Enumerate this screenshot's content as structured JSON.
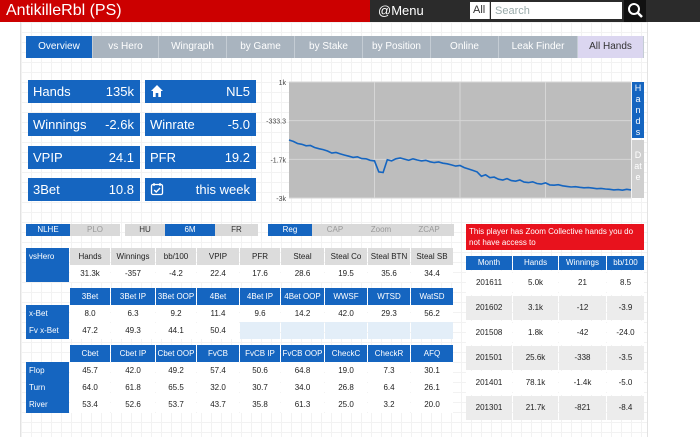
{
  "header": {
    "title": "AntikilleRbl (PS)",
    "menu_label": "@Menu",
    "scope_label": "All",
    "search_placeholder": "Search"
  },
  "tabs": [
    {
      "label": "Overview"
    },
    {
      "label": "vs Hero"
    },
    {
      "label": "Wingraph"
    },
    {
      "label": "by Game"
    },
    {
      "label": "by Stake"
    },
    {
      "label": "by Position"
    },
    {
      "label": "Online"
    },
    {
      "label": "Leak Finder"
    },
    {
      "label": "All Hands"
    }
  ],
  "summary": {
    "hands_label": "Hands",
    "hands_value": "135k",
    "stake_value": "NL5",
    "winnings_label": "Winnings",
    "winnings_value": "-2.6k",
    "winrate_label": "Winrate",
    "winrate_value": "-5.0",
    "vpip_label": "VPIP",
    "vpip_value": "24.1",
    "pfr_label": "PFR",
    "pfr_value": "19.2",
    "threebet_label": "3Bet",
    "threebet_value": "10.8",
    "period_value": "this week"
  },
  "graph": {
    "y_ticks": [
      "1k",
      "-333.3",
      "-1.7k",
      "-3k"
    ],
    "side_hands": "Hands",
    "side_date": "Date",
    "ymin": -3000,
    "ymax": 1000,
    "series": [
      -1000,
      -1050,
      -1120,
      -1150,
      -1200,
      -1190,
      -1260,
      -1300,
      -1330,
      -1380,
      -1450,
      -1430,
      -1480,
      -1520,
      -1560,
      -1600,
      -1580,
      -1640,
      -1650,
      -1700,
      -1720,
      -2100,
      -2120,
      -1680,
      -1720,
      -1650,
      -1620,
      -1660,
      -1700,
      -1650,
      -1690,
      -1720,
      -1700,
      -1750,
      -1780,
      -1760,
      -1800,
      -1820,
      -1860,
      -1900,
      -1880,
      -1950,
      -2000,
      -2050,
      -2100,
      -2250,
      -2200,
      -2300,
      -2280,
      -2350,
      -2380,
      -2330,
      -2400,
      -2420,
      -2380,
      -2450,
      -2470,
      -2440,
      -2500,
      -2520,
      -2480,
      -2550,
      -2560,
      -2540,
      -2580,
      -2600,
      -2620,
      -2610,
      -2630,
      -2650,
      -2640,
      -2660,
      -2680,
      -2670,
      -2690,
      -2700,
      -2720,
      -2710,
      -2730,
      -2700,
      -2720
    ]
  },
  "filters": {
    "game": [
      "NLHE",
      "PLO"
    ],
    "format": [
      "HU",
      "6M",
      "FR"
    ],
    "pool": [
      "Reg",
      "CAP",
      "Zoom",
      "ZCAP"
    ]
  },
  "table1": {
    "corner": "vsHero",
    "headers": [
      "Hands",
      "Winnings",
      "bb/100",
      "VPIP",
      "PFR",
      "Steal",
      "Steal Co",
      "Steal BTN",
      "Steal SB"
    ],
    "values": [
      "31.3k",
      "-357",
      "-4.2",
      "22.4",
      "17.6",
      "28.6",
      "19.5",
      "35.6",
      "34.4"
    ]
  },
  "table2": {
    "headers": [
      "3Bet",
      "3Bet IP",
      "3Bet OOP",
      "4Bet",
      "4Bet IP",
      "4Bet OOP",
      "WWSF",
      "WTSD",
      "WatSD"
    ],
    "rows": [
      {
        "label": "x-Bet",
        "values": [
          "8.0",
          "6.3",
          "9.2",
          "11.4",
          "9.6",
          "14.2",
          "42.0",
          "29.3",
          "56.2"
        ]
      },
      {
        "label": "Fv x-Bet",
        "values": [
          "47.2",
          "49.3",
          "44.1",
          "50.4",
          "",
          "",
          "",
          "",
          ""
        ]
      }
    ]
  },
  "table3": {
    "headers": [
      "Cbet",
      "Cbet IP",
      "Cbet OOP",
      "FvCB",
      "FvCB IP",
      "FvCB OOP",
      "CheckC",
      "CheckR",
      "AFQ"
    ],
    "rows": [
      {
        "label": "Flop",
        "values": [
          "45.7",
          "42.0",
          "49.2",
          "57.4",
          "50.6",
          "64.8",
          "19.0",
          "7.3",
          "30.1"
        ]
      },
      {
        "label": "Turn",
        "values": [
          "64.0",
          "61.8",
          "65.5",
          "32.0",
          "30.7",
          "34.0",
          "26.8",
          "6.4",
          "26.1"
        ]
      },
      {
        "label": "River",
        "values": [
          "53.4",
          "52.6",
          "53.7",
          "43.7",
          "35.8",
          "61.3",
          "25.0",
          "3.2",
          "20.0"
        ]
      }
    ]
  },
  "notice": "This player has Zoom Collective hands you do not have access to",
  "monthly": {
    "headers": [
      "Month",
      "Hands",
      "Winnings",
      "bb/100"
    ],
    "rows": [
      [
        "201611",
        "5.0k",
        "21",
        "8.5"
      ],
      [
        "201602",
        "3.1k",
        "-12",
        "-3.9"
      ],
      [
        "201508",
        "1.8k",
        "-42",
        "-24.0"
      ],
      [
        "201501",
        "25.6k",
        "-338",
        "-3.5"
      ],
      [
        "201401",
        "78.1k",
        "-1.4k",
        "-5.0"
      ],
      [
        "201301",
        "21.7k",
        "-821",
        "-8.4"
      ]
    ]
  }
}
